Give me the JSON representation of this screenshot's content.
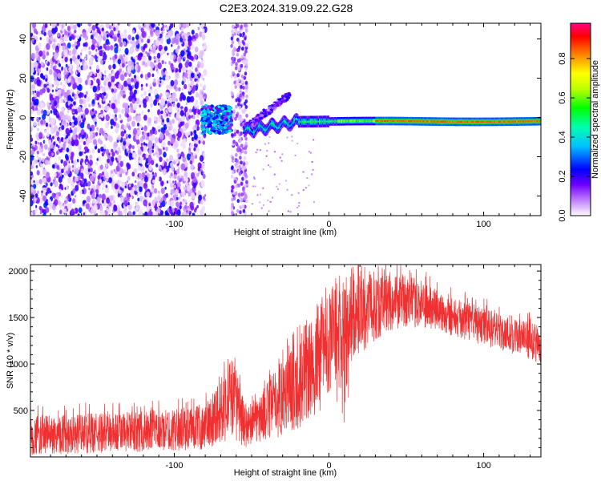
{
  "title": "C2E3.2024.319.09.22.G28",
  "chart_data": [
    {
      "type": "heatmap",
      "xlabel": "Height of straight line (km)",
      "ylabel": "Frequency (Hz)",
      "xlim": [
        -193,
        137
      ],
      "ylim": [
        -50,
        48
      ],
      "x_ticks": [
        -100,
        0,
        100
      ],
      "y_ticks": [
        -40,
        -20,
        0,
        20,
        40
      ],
      "colorbar": {
        "label": "Normalized spectral amplitude",
        "range": [
          0,
          0.98
        ],
        "ticks": [
          "0.0",
          "0.2",
          "0.4",
          "0.6",
          "0.8"
        ],
        "tick_values": [
          0,
          0.2,
          0.4,
          0.6,
          0.8
        ],
        "colors": [
          "#ffffff",
          "#a000ff",
          "#0000ff",
          "#00ffff",
          "#00ff00",
          "#ffff00",
          "#ff7f00",
          "#ff0000",
          "#ff0080"
        ]
      },
      "features": [
        {
          "kind": "scattered_noise",
          "x": [
            -193,
            -80
          ],
          "frequency": [
            -50,
            48
          ],
          "amplitude": 0.15
        },
        {
          "kind": "vertical_band",
          "x": [
            -63,
            -53
          ],
          "frequency": [
            -50,
            48
          ],
          "amplitude": 0.12
        },
        {
          "kind": "onset_blobs",
          "x": [
            -82,
            -63
          ],
          "frequency": [
            -8,
            6
          ],
          "amplitude": 0.4
        },
        {
          "kind": "chirp_branch",
          "x": [
            -55,
            -25
          ],
          "frequency": [
            -6,
            12
          ],
          "amplitude": 0.25
        },
        {
          "kind": "carrier_line",
          "x": [
            -55,
            137
          ],
          "frequency_start": -7,
          "frequency_end": -2,
          "amplitude_peak": 0.9
        }
      ]
    },
    {
      "type": "line",
      "xlabel": "Height of straight line (km)",
      "ylabel": "SNR (10 * v/v)",
      "xlim": [
        -193,
        137
      ],
      "ylim": [
        0,
        2070
      ],
      "x_ticks": [
        -100,
        0,
        100
      ],
      "y_ticks": [
        500,
        1000,
        1500,
        2000
      ],
      "color": "#f03030",
      "envelope": {
        "x": [
          -193,
          -150,
          -110,
          -80,
          -70,
          -62,
          -55,
          -50,
          -40,
          -30,
          -20,
          -10,
          -5,
          0,
          10,
          20,
          30,
          40,
          50,
          60,
          70,
          80,
          90,
          100,
          110,
          120,
          130,
          137
        ],
        "low": [
          20,
          40,
          60,
          80,
          150,
          200,
          100,
          120,
          180,
          220,
          300,
          400,
          500,
          700,
          900,
          1100,
          1250,
          1350,
          1400,
          1380,
          1350,
          1300,
          1250,
          1200,
          1150,
          1100,
          1050,
          1000
        ],
        "high": [
          450,
          470,
          500,
          560,
          900,
          1100,
          600,
          550,
          800,
          1100,
          1300,
          1500,
          1700,
          1800,
          1950,
          2000,
          2000,
          1980,
          1950,
          1900,
          1800,
          1720,
          1650,
          1600,
          1550,
          1500,
          1450,
          1400
        ]
      }
    }
  ]
}
